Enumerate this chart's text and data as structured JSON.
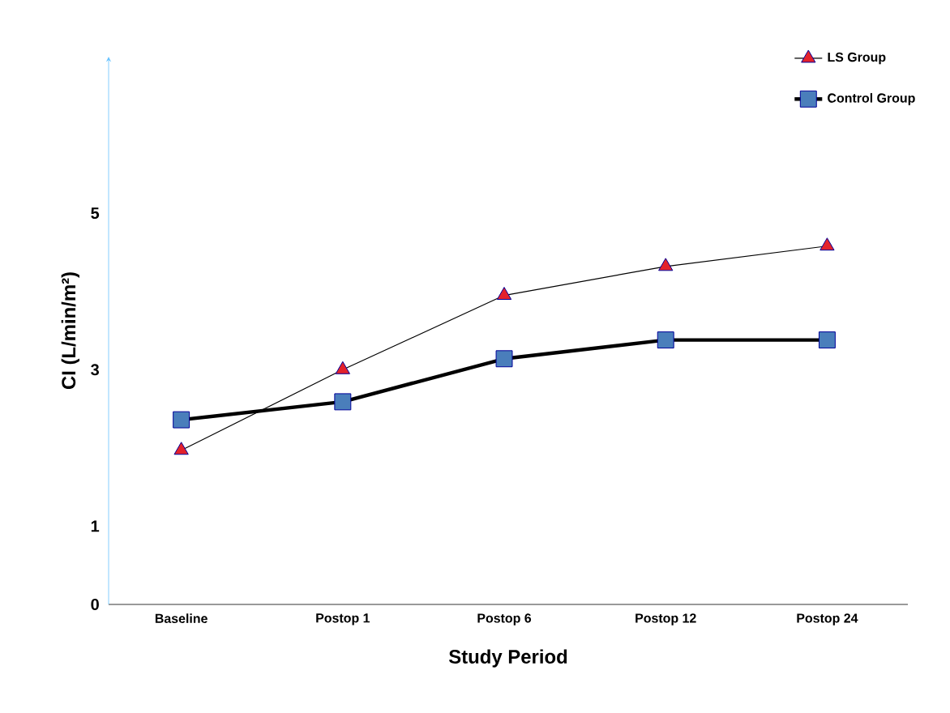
{
  "chart_data": {
    "type": "line",
    "xlabel": "Study Period",
    "ylabel": "CI (L/min/m²)",
    "categories": [
      "Baseline",
      "Postop 1",
      "Postop 6",
      "Postop 12",
      "Postop 24"
    ],
    "series": [
      {
        "name": "LS Group",
        "color": "#e3222b",
        "marker": "triangle",
        "values": [
          1.97,
          3.0,
          3.95,
          4.32,
          4.58
        ]
      },
      {
        "name": "Control Group",
        "color": "#4a7ebb",
        "marker": "square",
        "values": [
          2.36,
          2.59,
          3.14,
          3.38,
          3.38
        ]
      }
    ],
    "ylim": [
      0,
      7
    ],
    "yticks": [
      0,
      1,
      3,
      5
    ],
    "legend": "top right",
    "grid": false
  }
}
